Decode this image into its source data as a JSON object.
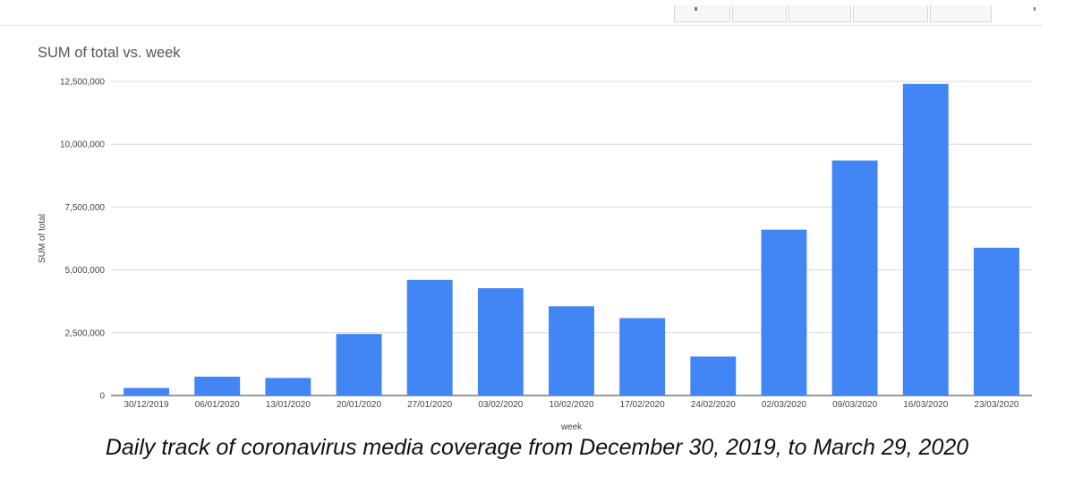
{
  "toolbar": {
    "buttons": [
      "",
      "",
      "",
      "",
      ""
    ]
  },
  "chart_title": "SUM of total vs. week",
  "caption": "Daily track of coronavirus media coverage from December 30, 2019, to March 29, 2020",
  "colors": {
    "bar": "#4285f4",
    "grid": "#d9d9d9",
    "axis": "#333333",
    "tick_text": "#444444"
  },
  "chart_data": {
    "type": "bar",
    "title": "SUM of total vs. week",
    "xlabel": "week",
    "ylabel": "SUM of total",
    "categories": [
      "30/12/2019",
      "06/01/2020",
      "13/01/2020",
      "20/01/2020",
      "27/01/2020",
      "03/02/2020",
      "10/02/2020",
      "17/02/2020",
      "24/02/2020",
      "02/03/2020",
      "09/03/2020",
      "16/03/2020",
      "23/03/2020"
    ],
    "values": [
      300000,
      750000,
      700000,
      2450000,
      4600000,
      4270000,
      3550000,
      3080000,
      1550000,
      6600000,
      9350000,
      12400000,
      5880000
    ],
    "ylim": [
      0,
      12500000
    ],
    "yticks": [
      0,
      2500000,
      5000000,
      7500000,
      10000000,
      12500000
    ],
    "ytick_labels": [
      "0",
      "2,500,000",
      "5,000,000",
      "7,500,000",
      "10,000,000",
      "12,500,000"
    ],
    "grid": true,
    "legend": "none"
  }
}
